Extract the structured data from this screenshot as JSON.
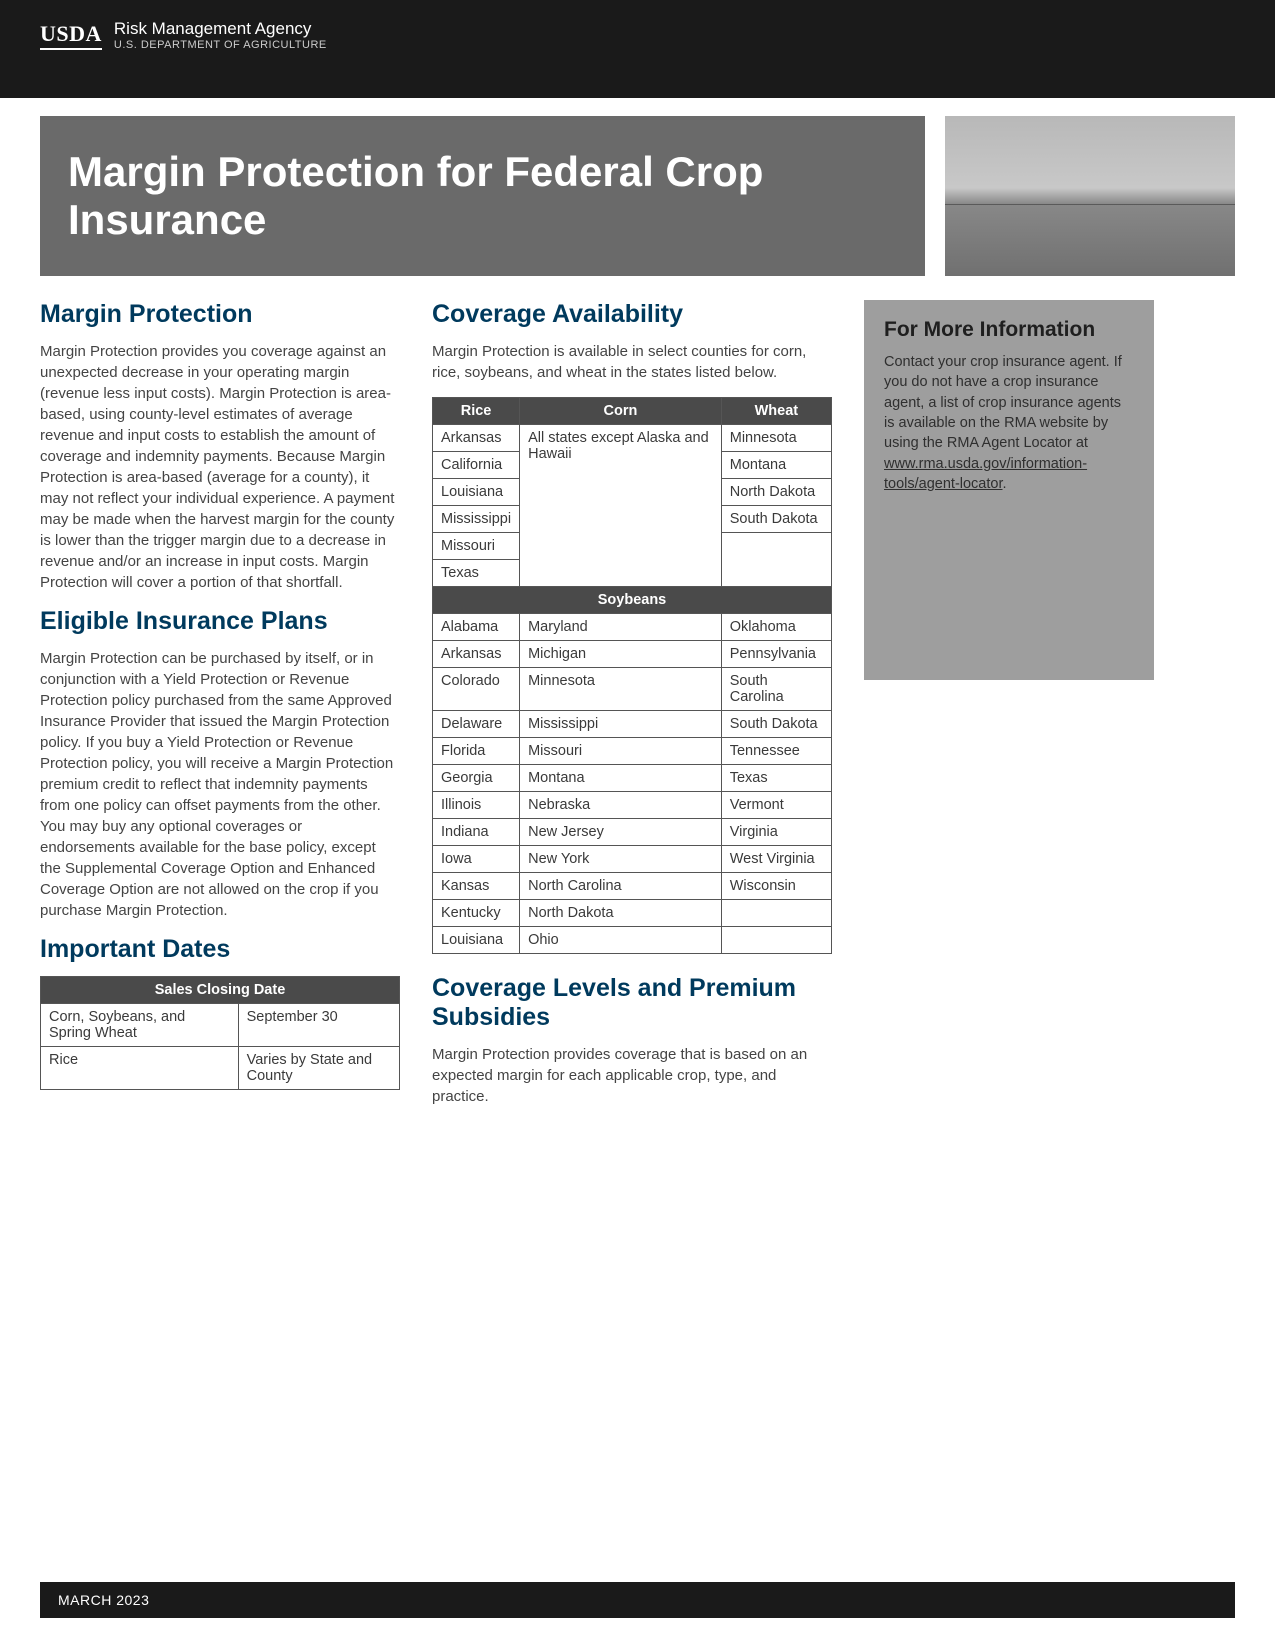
{
  "header": {
    "logo_text": "USDA",
    "agency_line1": "Risk Management Agency",
    "agency_line2": "U.S. DEPARTMENT OF AGRICULTURE"
  },
  "hero": {
    "title": "Margin Protection for Federal Crop Insurance"
  },
  "left": {
    "h_margin": "Margin Protection",
    "p_margin": "Margin Protection provides you coverage against an unexpected decrease in your operating margin (revenue less input costs). Margin Protection is area-based, using county-level estimates of average revenue and input costs to establish the amount of coverage and indemnity payments. Because Margin Protection is area-based (average for a county), it may not reflect your individual experience. A payment may be made when the harvest margin for the county is lower than the trigger margin due to a decrease in revenue and/or an increase in input costs. Margin Protection will cover a portion of that shortfall.",
    "h_plans": "Eligible Insurance Plans",
    "p_plans": "Margin Protection can be purchased by itself, or in conjunction with a Yield Protection or Revenue Protection policy purchased from the same Approved Insurance Provider that issued the Margin Protection policy. If you buy a Yield Protection or Revenue Protection policy, you will receive a Margin Protection premium credit to reflect that indemnity payments from one policy can offset payments from the other. You may buy any optional coverages or endorsements available for the base policy, except the Supplemental Coverage Option and Enhanced Coverage Option are not allowed on the crop if you purchase Margin Protection.",
    "h_dates": "Important Dates",
    "dates_table": {
      "header": "Sales Closing Date",
      "rows": [
        [
          "Corn, Soybeans, and Spring Wheat",
          "September 30"
        ],
        [
          "Rice",
          "Varies by State and County"
        ]
      ]
    }
  },
  "mid": {
    "h_avail": "Coverage Availability",
    "p_avail": "Margin Protection is available in select counties for corn, rice, soybeans, and wheat in the states listed below.",
    "crops_table": {
      "headers": [
        "Rice",
        "Corn",
        "Wheat"
      ],
      "rice": [
        "Arkansas",
        "California",
        "Louisiana",
        "Mississippi",
        "Missouri",
        "Texas"
      ],
      "corn_text": "All states except Alaska and Hawaii",
      "wheat": [
        "Minnesota",
        "Montana",
        "North Dakota",
        "South Dakota"
      ],
      "soy_header": "Soybeans",
      "soy_rows": [
        [
          "Alabama",
          "Maryland",
          "Oklahoma"
        ],
        [
          "Arkansas",
          "Michigan",
          "Pennsylvania"
        ],
        [
          "Colorado",
          "Minnesota",
          "South Carolina"
        ],
        [
          "Delaware",
          "Mississippi",
          "South Dakota"
        ],
        [
          "Florida",
          "Missouri",
          "Tennessee"
        ],
        [
          "Georgia",
          "Montana",
          "Texas"
        ],
        [
          "Illinois",
          "Nebraska",
          "Vermont"
        ],
        [
          "Indiana",
          "New Jersey",
          "Virginia"
        ],
        [
          "Iowa",
          "New York",
          "West Virginia"
        ],
        [
          "Kansas",
          "North Carolina",
          "Wisconsin"
        ],
        [
          "Kentucky",
          "North Dakota",
          ""
        ],
        [
          "Louisiana",
          "Ohio",
          ""
        ]
      ]
    },
    "h_levels": "Coverage Levels and Premium Subsidies",
    "p_levels": "Margin Protection provides coverage that is based on an expected margin for each applicable crop, type, and practice."
  },
  "right": {
    "h_info": "For More Information",
    "p_info_a": "Contact your crop insurance agent. If you do not have a crop insurance agent, a list of crop insurance agents is available on the RMA website by using the RMA Agent Locator at ",
    "p_info_link": "www.rma.usda.gov/information-tools/agent-locator",
    "p_info_b": "."
  },
  "footer": {
    "date": "MARCH 2023"
  },
  "colors": {
    "heading": "#003a5d",
    "table_header_bg": "#4a4a4a",
    "infobox_bg": "#9e9e9e",
    "header_bg": "#1a1a1a"
  }
}
